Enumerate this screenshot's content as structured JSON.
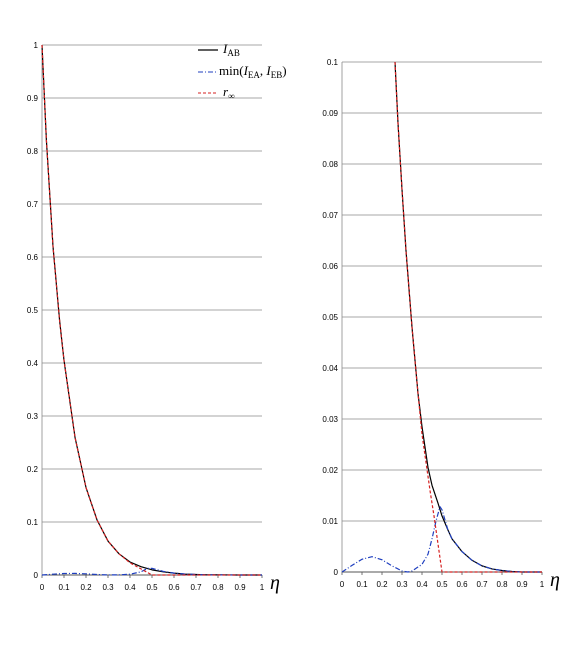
{
  "chart_data": [
    {
      "type": "line",
      "xlabel": "η",
      "xlim": [
        0,
        1
      ],
      "ylim": [
        0,
        1
      ],
      "x_ticks": [
        "0",
        "0.1",
        "0.2",
        "0.3",
        "0.4",
        "0.5",
        "0.6",
        "0.7",
        "0.8",
        "0.9",
        "1"
      ],
      "y_ticks": [
        "0",
        "0.1",
        "0.2",
        "0.3",
        "0.4",
        "0.5",
        "0.6",
        "0.7",
        "0.8",
        "0.9",
        "1"
      ],
      "grid": "horizontal",
      "legend_position": "top-right",
      "series": [
        {
          "name": "I_AB",
          "style": "solid",
          "color": "#000000",
          "x": [
            0,
            0.02,
            0.05,
            0.08,
            0.1,
            0.15,
            0.2,
            0.25,
            0.3,
            0.35,
            0.4,
            0.45,
            0.5,
            0.55,
            0.6,
            0.65,
            0.7,
            0.75,
            0.8,
            0.85,
            0.9,
            0.95,
            1
          ],
          "y": [
            1,
            0.82,
            0.62,
            0.48,
            0.405,
            0.26,
            0.165,
            0.104,
            0.064,
            0.04,
            0.0245,
            0.0157,
            0.0097,
            0.006,
            0.0035,
            0.0018,
            0.0009,
            0.0004,
            0.0002,
            0.0001,
            0,
            0,
            0
          ]
        },
        {
          "name": "min(I_EA, I_EB)",
          "style": "dash-dot",
          "color": "#1f3fbf",
          "x": [
            0,
            0.05,
            0.1,
            0.15,
            0.2,
            0.25,
            0.3,
            0.35,
            0.4,
            0.45,
            0.48,
            0.5,
            0.55,
            0.6,
            0.65,
            0.7,
            0.75,
            0.8,
            0.85,
            0.9,
            0.95,
            1
          ],
          "y": [
            0,
            0.0015,
            0.0028,
            0.003,
            0.0022,
            0.001,
            0.0001,
            0.0003,
            0.0015,
            0.006,
            0.0125,
            0.0125,
            0.007,
            0.0035,
            0.0018,
            0.0009,
            0.0004,
            0.0002,
            0.0001,
            0,
            0,
            0
          ]
        },
        {
          "name": "r_∞",
          "style": "dashed",
          "color": "#d62020",
          "x": [
            0,
            0.02,
            0.05,
            0.08,
            0.1,
            0.15,
            0.2,
            0.25,
            0.3,
            0.35,
            0.4,
            0.45,
            0.5,
            0.55,
            0.6,
            0.7,
            0.8,
            0.9,
            1
          ],
          "y": [
            1,
            0.82,
            0.62,
            0.48,
            0.405,
            0.26,
            0.165,
            0.104,
            0.064,
            0.04,
            0.023,
            0.0115,
            0,
            0,
            0,
            0,
            0,
            0,
            0
          ]
        }
      ]
    },
    {
      "type": "line",
      "xlabel": "η",
      "xlim": [
        0,
        1
      ],
      "ylim": [
        0,
        0.1
      ],
      "x_ticks": [
        "0",
        "0.1",
        "0.2",
        "0.3",
        "0.4",
        "0.5",
        "0.6",
        "0.7",
        "0.8",
        "0.9",
        "1"
      ],
      "y_ticks": [
        "0",
        "0.01",
        "0.02",
        "0.03",
        "0.04",
        "0.05",
        "0.06",
        "0.07",
        "0.08",
        "0.09",
        "0.1"
      ],
      "grid": "horizontal",
      "series": [
        {
          "name": "I_AB",
          "style": "solid",
          "color": "#000000",
          "x": [
            0.265,
            0.28,
            0.3,
            0.32,
            0.35,
            0.38,
            0.4,
            0.43,
            0.45,
            0.48,
            0.5,
            0.53,
            0.55,
            0.6,
            0.65,
            0.7,
            0.75,
            0.8,
            0.85,
            0.9,
            0.95,
            1
          ],
          "y": [
            0.1,
            0.088,
            0.075,
            0.063,
            0.048,
            0.035,
            0.0285,
            0.0205,
            0.017,
            0.0135,
            0.011,
            0.0082,
            0.0065,
            0.004,
            0.0023,
            0.0012,
            0.0006,
            0.0003,
            0.0001,
            0,
            0,
            0
          ]
        },
        {
          "name": "min(I_EA, I_EB)",
          "style": "dash-dot",
          "color": "#1f3fbf",
          "x": [
            0,
            0.05,
            0.1,
            0.15,
            0.2,
            0.25,
            0.3,
            0.33,
            0.35,
            0.4,
            0.43,
            0.45,
            0.47,
            0.49,
            0.5,
            0.53,
            0.55,
            0.6,
            0.65,
            0.7,
            0.75,
            0.8,
            0.85,
            0.9,
            0.95,
            1
          ],
          "y": [
            0,
            0.0013,
            0.0025,
            0.003,
            0.0024,
            0.0012,
            0.0002,
            0,
            0.0002,
            0.0015,
            0.0035,
            0.0065,
            0.01,
            0.0128,
            0.0122,
            0.0082,
            0.0065,
            0.004,
            0.0023,
            0.0012,
            0.0006,
            0.0003,
            0.0001,
            0,
            0,
            0
          ]
        },
        {
          "name": "r_∞",
          "style": "dashed",
          "color": "#d62020",
          "x": [
            0.265,
            0.28,
            0.3,
            0.32,
            0.35,
            0.38,
            0.4,
            0.42,
            0.44,
            0.46,
            0.48,
            0.5,
            0.55,
            0.6,
            0.7,
            0.8,
            0.9,
            1
          ],
          "y": [
            0.1,
            0.088,
            0.075,
            0.063,
            0.048,
            0.035,
            0.027,
            0.0215,
            0.016,
            0.011,
            0.0055,
            0,
            0,
            0,
            0,
            0,
            0,
            0
          ]
        }
      ]
    }
  ],
  "legend": {
    "i_ab": {
      "main": "I",
      "sub": "AB"
    },
    "min": {
      "prefix": "min(",
      "i1": "I",
      "sub1": "EA",
      "sep": ", ",
      "i2": "I",
      "sub2": "EB",
      "suffix": ")"
    },
    "r_inf": {
      "main": "r",
      "sub": "∞"
    }
  }
}
